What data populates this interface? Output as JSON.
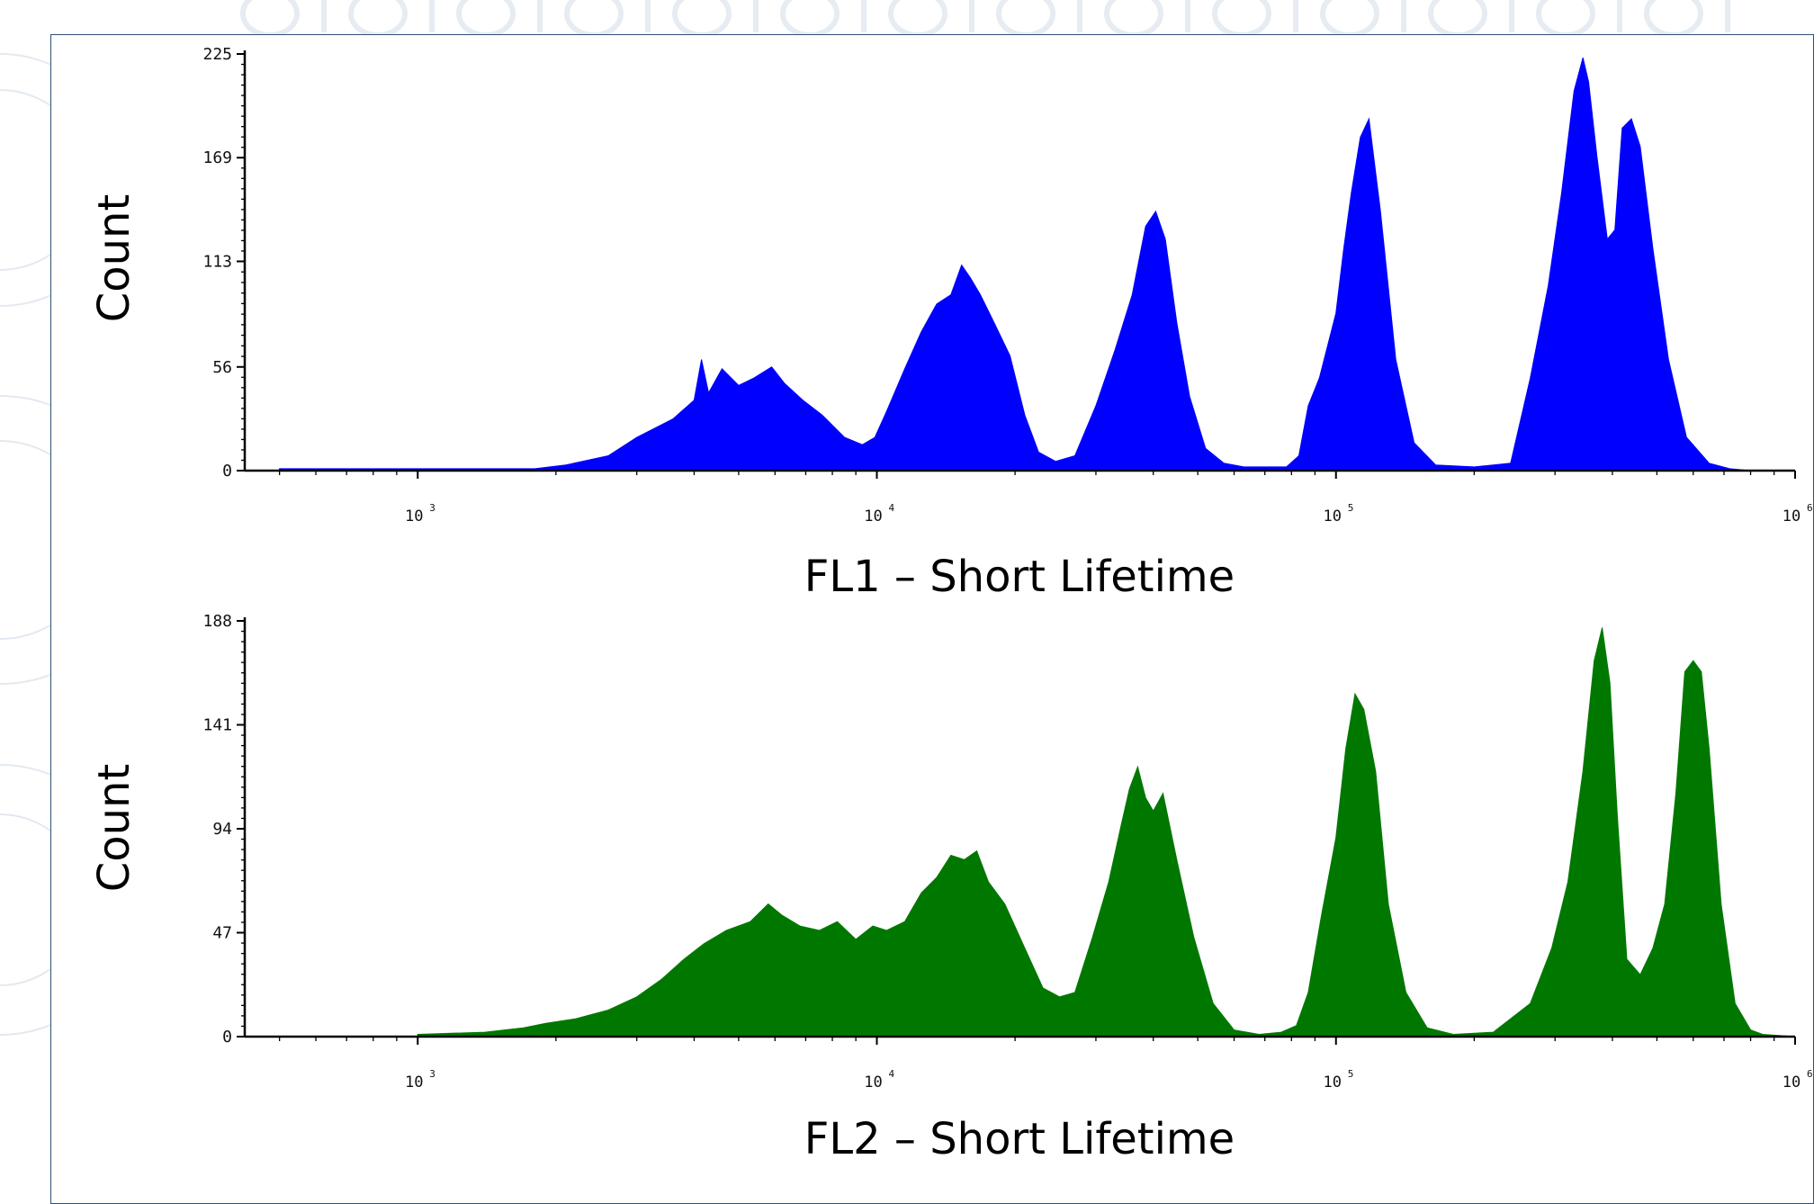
{
  "colors": {
    "background": "#ffffff",
    "panel_border": "#2f4f78",
    "watermark": "#dfe6ee",
    "fl1_fill": "#0000ff",
    "fl2_fill": "#007800",
    "axis": "#000000"
  },
  "chart_data": [
    {
      "type": "area",
      "title": "",
      "xlabel": "FL1 – Short Lifetime",
      "ylabel": "Count",
      "xscale": "log",
      "xlim": [
        420,
        1000000
      ],
      "ylim": [
        0,
        225
      ],
      "yticks": [
        0,
        56,
        113,
        169,
        225
      ],
      "xticks": [
        {
          "value": 1000,
          "base": "10",
          "exp": "3"
        },
        {
          "value": 10000,
          "base": "10",
          "exp": "4"
        },
        {
          "value": 100000,
          "base": "10",
          "exp": "5"
        },
        {
          "value": 1000000,
          "base": "10",
          "exp": "6"
        }
      ],
      "grid": false,
      "series": [
        {
          "color": "#0000ff",
          "x": [
            500,
            1000,
            1800,
            2100,
            2600,
            3000,
            3600,
            4000,
            4150,
            4300,
            4600,
            5000,
            5400,
            5900,
            6300,
            6900,
            7600,
            8500,
            9300,
            9900,
            10500,
            11500,
            12500,
            13500,
            14500,
            15300,
            16000,
            16800,
            18000,
            19500,
            21000,
            22500,
            24500,
            27000,
            30000,
            33000,
            36000,
            38500,
            40500,
            42500,
            45000,
            48000,
            52000,
            57000,
            63000,
            70000,
            78000,
            83000,
            87000,
            92000,
            100000,
            104000,
            108000,
            113000,
            118000,
            125000,
            135000,
            148000,
            165000,
            200000,
            240000,
            265000,
            290000,
            310000,
            330000,
            345000,
            355000,
            370000,
            390000,
            405000,
            420000,
            440000,
            460000,
            490000,
            530000,
            580000,
            650000,
            720000,
            800000,
            1000000
          ],
          "y": [
            1,
            1,
            1,
            3,
            8,
            18,
            28,
            38,
            60,
            42,
            55,
            46,
            50,
            56,
            47,
            38,
            30,
            18,
            14,
            18,
            32,
            55,
            75,
            90,
            95,
            111,
            104,
            95,
            80,
            62,
            30,
            10,
            5,
            8,
            35,
            65,
            95,
            132,
            140,
            125,
            80,
            40,
            12,
            4,
            2,
            2,
            2,
            8,
            35,
            50,
            85,
            120,
            150,
            180,
            190,
            140,
            60,
            15,
            3,
            2,
            4,
            50,
            100,
            150,
            205,
            223,
            210,
            170,
            125,
            130,
            185,
            190,
            175,
            120,
            60,
            18,
            4,
            1,
            0,
            0
          ]
        }
      ]
    },
    {
      "type": "area",
      "title": "",
      "xlabel": "FL2 – Short Lifetime",
      "ylabel": "Count",
      "xscale": "log",
      "xlim": [
        420,
        1000000
      ],
      "ylim": [
        0,
        188
      ],
      "yticks": [
        0,
        47,
        94,
        141,
        188
      ],
      "xticks": [
        {
          "value": 1000,
          "base": "10",
          "exp": "3"
        },
        {
          "value": 10000,
          "base": "10",
          "exp": "4"
        },
        {
          "value": 100000,
          "base": "10",
          "exp": "5"
        },
        {
          "value": 1000000,
          "base": "10",
          "exp": "6"
        }
      ],
      "grid": false,
      "series": [
        {
          "color": "#007800",
          "x": [
            1000,
            1400,
            1700,
            1900,
            2200,
            2600,
            3000,
            3400,
            3800,
            4200,
            4700,
            5300,
            5800,
            6200,
            6800,
            7500,
            8200,
            9000,
            9800,
            10500,
            11500,
            12500,
            13500,
            14500,
            15500,
            16500,
            17500,
            19000,
            21000,
            23000,
            25000,
            27000,
            29500,
            32000,
            34000,
            35500,
            37000,
            38500,
            40000,
            42000,
            45000,
            49000,
            54000,
            60000,
            68000,
            76000,
            82000,
            87000,
            93000,
            100000,
            105000,
            110000,
            115000,
            122000,
            130000,
            142000,
            158000,
            180000,
            220000,
            265000,
            295000,
            320000,
            345000,
            365000,
            380000,
            395000,
            410000,
            430000,
            460000,
            490000,
            520000,
            550000,
            575000,
            600000,
            625000,
            650000,
            690000,
            740000,
            800000,
            850000,
            1000000
          ],
          "y": [
            1,
            2,
            4,
            6,
            8,
            12,
            18,
            26,
            35,
            42,
            48,
            52,
            60,
            55,
            50,
            48,
            52,
            44,
            50,
            48,
            52,
            65,
            72,
            82,
            80,
            84,
            70,
            60,
            40,
            22,
            18,
            20,
            45,
            70,
            95,
            112,
            122,
            108,
            102,
            110,
            80,
            45,
            15,
            3,
            1,
            2,
            5,
            20,
            55,
            90,
            130,
            155,
            148,
            120,
            60,
            20,
            4,
            1,
            2,
            15,
            40,
            70,
            120,
            170,
            185,
            160,
            100,
            35,
            28,
            40,
            60,
            110,
            165,
            170,
            165,
            130,
            60,
            15,
            3,
            1,
            0
          ]
        }
      ]
    }
  ]
}
